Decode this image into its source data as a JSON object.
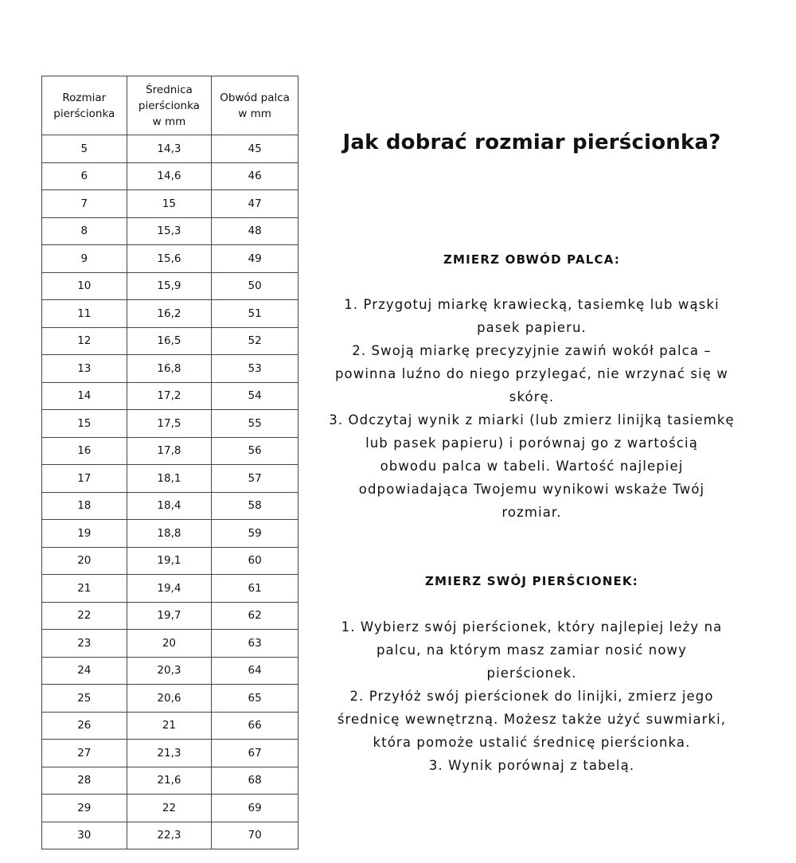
{
  "table": {
    "headers": [
      [
        "Rozmiar",
        "pierścionka"
      ],
      [
        "Średnica",
        "pierścionka",
        "w mm"
      ],
      [
        "Obwód palca",
        "w mm"
      ]
    ],
    "rows": [
      [
        "5",
        "14,3",
        "45"
      ],
      [
        "6",
        "14,6",
        "46"
      ],
      [
        "7",
        "15",
        "47"
      ],
      [
        "8",
        "15,3",
        "48"
      ],
      [
        "9",
        "15,6",
        "49"
      ],
      [
        "10",
        "15,9",
        "50"
      ],
      [
        "11",
        "16,2",
        "51"
      ],
      [
        "12",
        "16,5",
        "52"
      ],
      [
        "13",
        "16,8",
        "53"
      ],
      [
        "14",
        "17,2",
        "54"
      ],
      [
        "15",
        "17,5",
        "55"
      ],
      [
        "16",
        "17,8",
        "56"
      ],
      [
        "17",
        "18,1",
        "57"
      ],
      [
        "18",
        "18,4",
        "58"
      ],
      [
        "19",
        "18,8",
        "59"
      ],
      [
        "20",
        "19,1",
        "60"
      ],
      [
        "21",
        "19,4",
        "61"
      ],
      [
        "22",
        "19,7",
        "62"
      ],
      [
        "23",
        "20",
        "63"
      ],
      [
        "24",
        "20,3",
        "64"
      ],
      [
        "25",
        "20,6",
        "65"
      ],
      [
        "26",
        "21",
        "66"
      ],
      [
        "27",
        "21,3",
        "67"
      ],
      [
        "28",
        "21,6",
        "68"
      ],
      [
        "29",
        "22",
        "69"
      ],
      [
        "30",
        "22,3",
        "70"
      ]
    ]
  },
  "title": "Jak dobrać rozmiar pierścionka?",
  "section1": {
    "heading": "ZMIERZ OBWÓD PALCA:",
    "lines": [
      "1. Przygotuj miarkę krawiecką, tasiemkę lub wąski",
      "pasek papieru.",
      "2. Swoją miarkę precyzyjnie zawiń wokół palca –",
      "powinna luźno do niego przylegać, nie wrzynać się w",
      "skórę.",
      "3. Odczytaj wynik z miarki (lub zmierz linijką tasiemkę",
      "lub pasek papieru) i porównaj go z wartością",
      "obwodu palca w tabeli. Wartość najlepiej",
      "odpowiadająca Twojemu wynikowi wskaże Twój",
      "rozmiar."
    ]
  },
  "section2": {
    "heading": "ZMIERZ SWÓJ PIERŚCIONEK:",
    "lines": [
      "1.  Wybierz swój pierścionek, który najlepiej leży na",
      "palcu, na którym masz zamiar nosić nowy",
      "pierścionek.",
      "2. Przyłóż swój pierścionek do linijki, zmierz jego",
      "średnicę wewnętrzną. Możesz także użyć suwmiarki,",
      "która pomoże ustalić średnicę pierścionka.",
      "3. Wynik porównaj z tabelą."
    ]
  }
}
